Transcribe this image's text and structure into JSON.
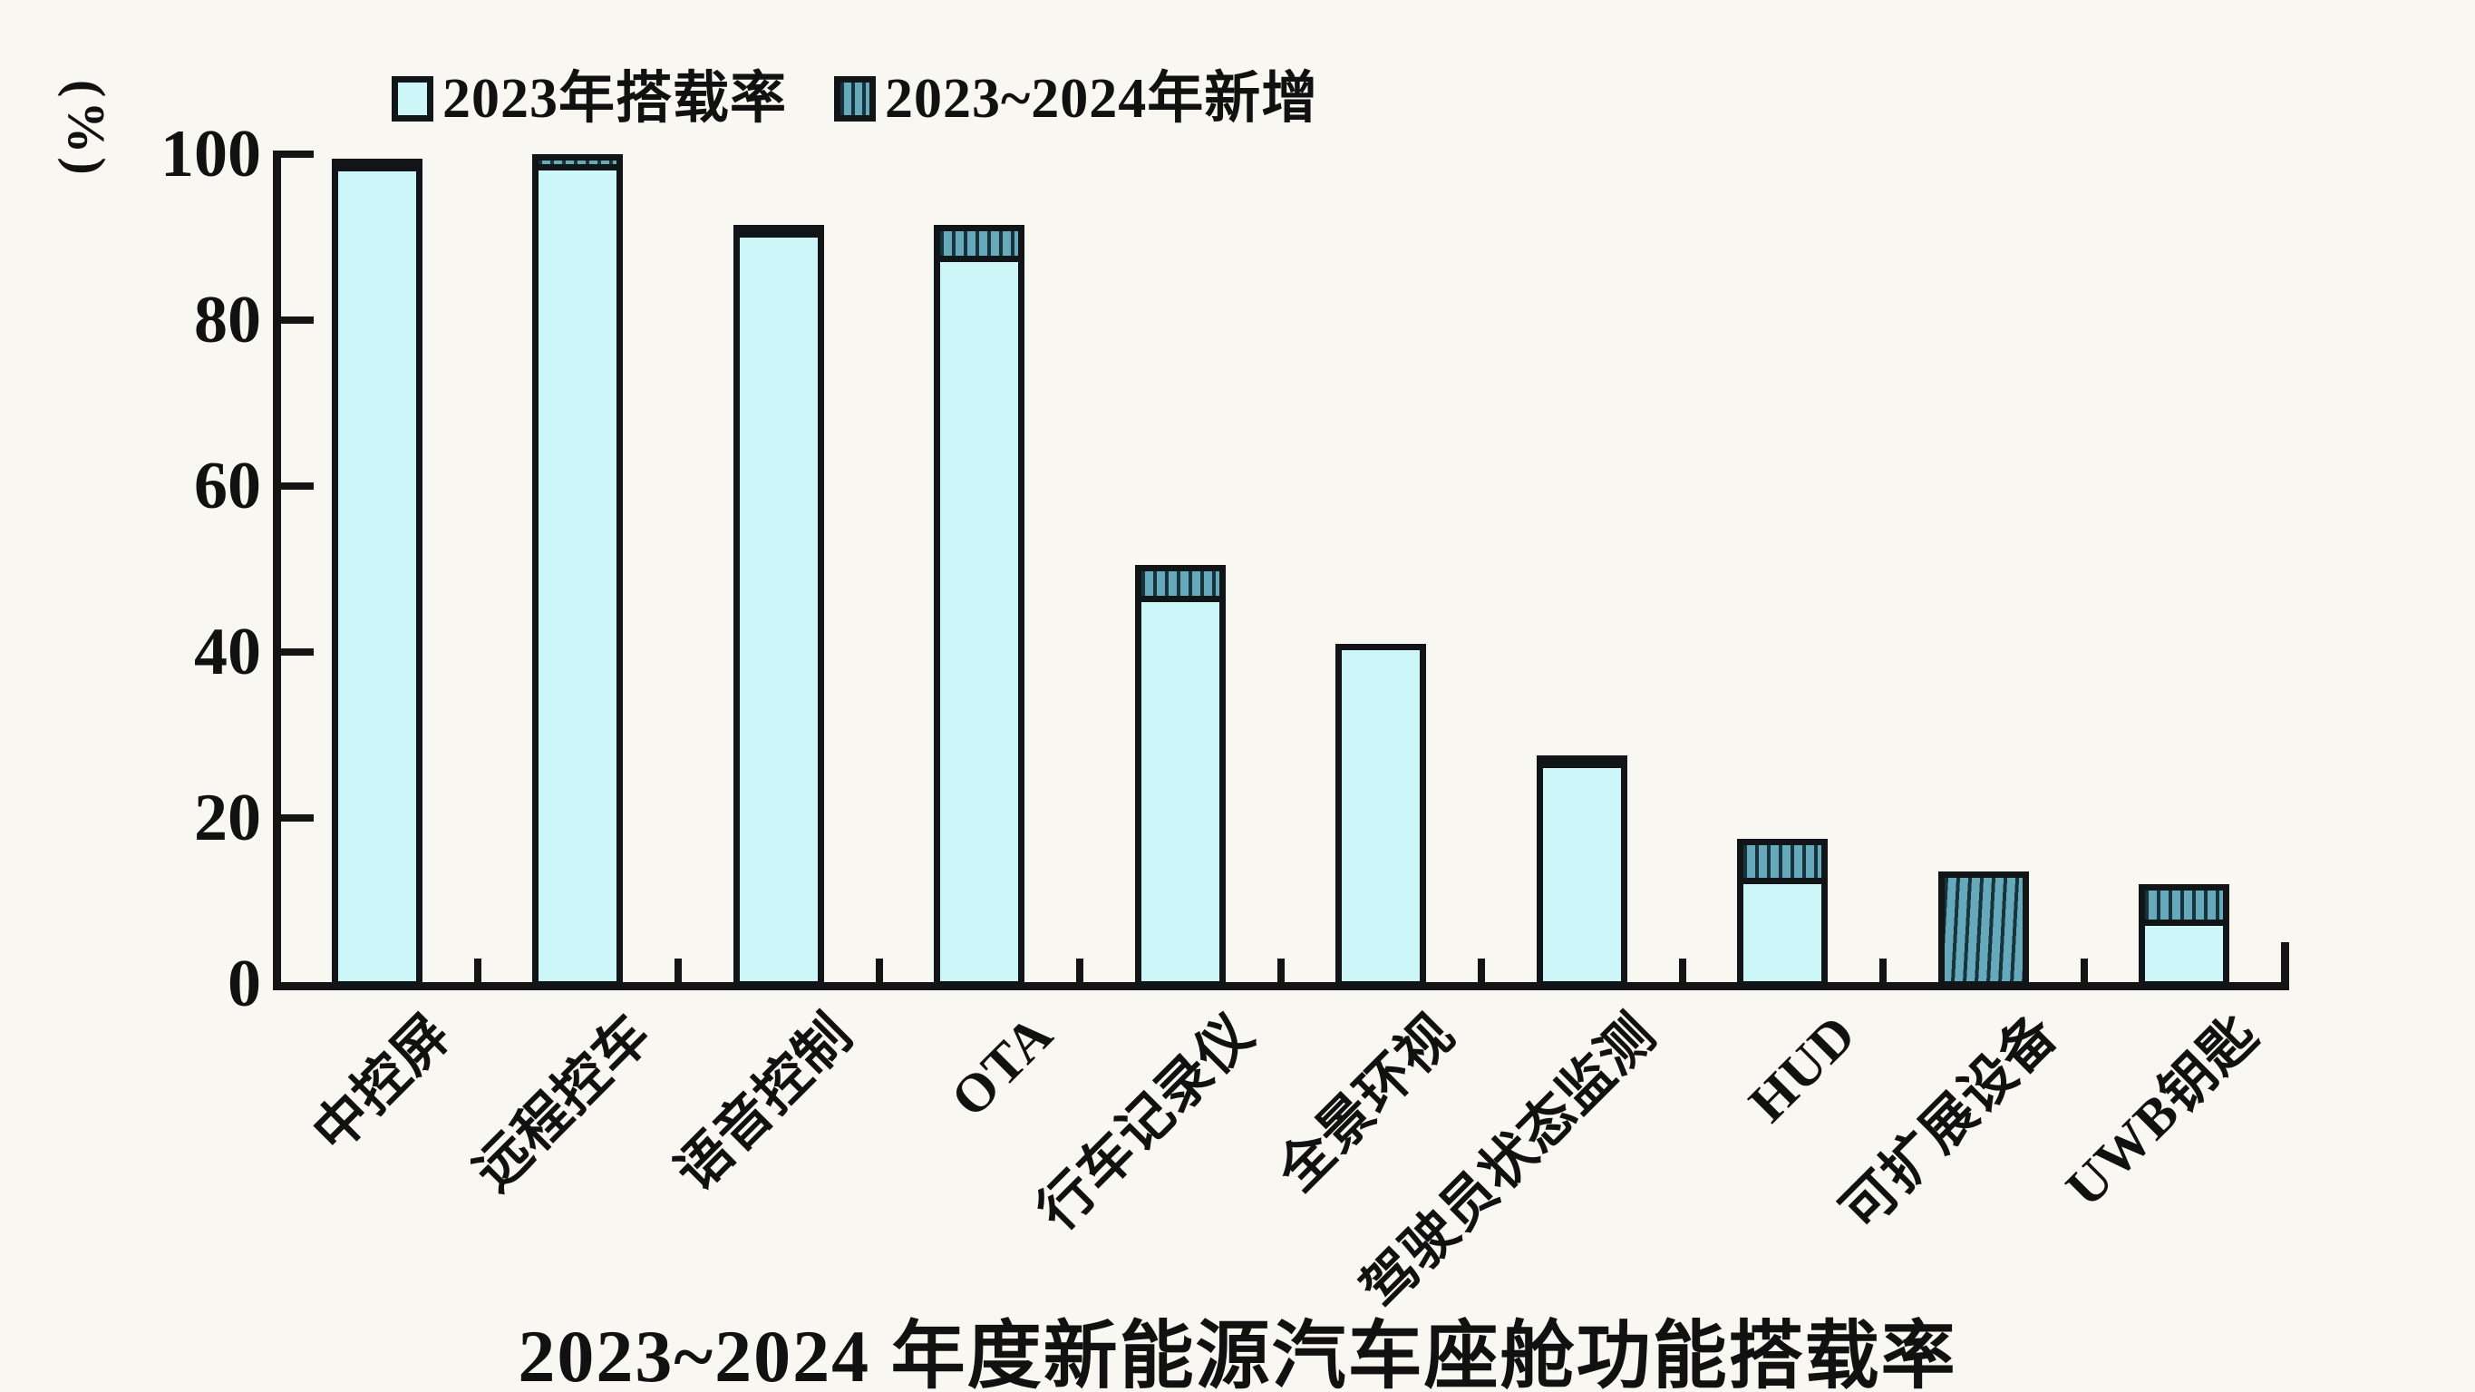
{
  "title": "2023~2024 年度新能源汽车座舱功能搭载率",
  "legend": {
    "items": [
      {
        "label": "2023年搭载率",
        "swatch": "solid-light-cyan"
      },
      {
        "label": "2023~2024年新增",
        "swatch": "hatched-teal"
      }
    ]
  },
  "y_axis": {
    "unit": "(%)",
    "tick_labels": [
      "0",
      "20",
      "40",
      "60",
      "80",
      "100"
    ]
  },
  "colors": {
    "background": "#f9f7f2",
    "light_fill": "#cdf6f8",
    "dark_fill": "#67a9bb",
    "hatch_line": "#16343d",
    "border": "#121517",
    "axis": "#141414"
  },
  "chart_data": {
    "type": "bar",
    "stacked": true,
    "grid": false,
    "legend_position": "top",
    "title": "2023~2024 年度新能源汽车座舱功能搭载率",
    "ylabel": "(%)",
    "ylim": [
      0,
      100
    ],
    "yticks": [
      0,
      20,
      40,
      60,
      80,
      100
    ],
    "categories": [
      "中控屏",
      "远程控车",
      "语音控制",
      "OTA",
      "行车记录仪",
      "全景环视",
      "驾驶员状态监测",
      "HUD",
      "可扩展设备",
      "UWB钥匙"
    ],
    "series": [
      {
        "name": "2023年搭载率",
        "values": [
          98.5,
          98,
          90,
          87,
          46,
          41,
          26,
          12,
          0,
          7
        ]
      },
      {
        "name": "2023~2024年新增",
        "values": [
          1,
          2,
          1.5,
          4.5,
          4.5,
          0,
          1.5,
          5.5,
          13.5,
          5
        ]
      }
    ],
    "totals": [
      99.5,
      100,
      91.5,
      91.5,
      50.5,
      41,
      27.5,
      17.5,
      13.5,
      12
    ]
  }
}
